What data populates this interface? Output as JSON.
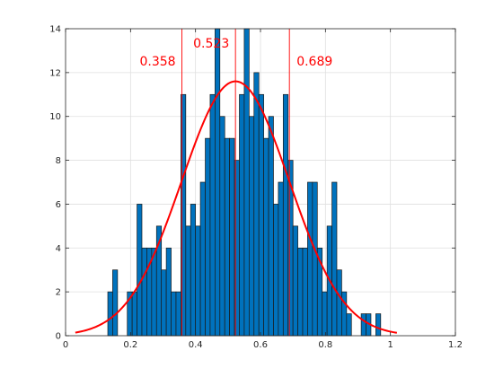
{
  "chart_data": {
    "type": "bar",
    "subtype": "histogram",
    "title": "",
    "xlabel": "",
    "ylabel": "",
    "xlim": [
      0,
      1.2
    ],
    "ylim": [
      0,
      14
    ],
    "grid": true,
    "bin_edges": [
      0.13,
      0.145,
      0.16,
      0.175,
      0.19,
      0.205,
      0.22,
      0.235,
      0.25,
      0.265,
      0.28,
      0.295,
      0.31,
      0.325,
      0.34,
      0.355,
      0.37,
      0.385,
      0.4,
      0.415,
      0.43,
      0.445,
      0.46,
      0.475,
      0.49,
      0.505,
      0.52,
      0.535,
      0.55,
      0.565,
      0.58,
      0.595,
      0.61,
      0.625,
      0.64,
      0.655,
      0.67,
      0.685,
      0.7,
      0.715,
      0.73,
      0.745,
      0.76,
      0.775,
      0.79,
      0.805,
      0.82,
      0.835,
      0.85,
      0.865,
      0.88,
      0.895,
      0.91,
      0.925,
      0.94,
      0.955,
      0.97
    ],
    "counts": [
      2,
      3,
      0,
      0,
      2,
      2,
      6,
      4,
      4,
      4,
      5,
      3,
      4,
      2,
      2,
      11,
      5,
      6,
      5,
      7,
      9,
      11,
      14,
      10,
      9,
      9,
      8,
      11,
      14,
      10,
      12,
      11,
      9,
      10,
      6,
      7,
      11,
      8,
      5,
      4,
      4,
      7,
      7,
      4,
      2,
      5,
      7,
      3,
      2,
      1,
      0,
      0,
      1,
      1,
      0,
      1
    ],
    "bar_color": "#0072BD",
    "curve": {
      "type": "normal_fit",
      "mean": 0.523,
      "sigma": 0.166,
      "peak": 11.6,
      "x_range": [
        0.03,
        1.02
      ],
      "color": "#ff0000"
    },
    "vlines": [
      {
        "x": 0.358,
        "label": "0.358"
      },
      {
        "x": 0.523,
        "label": "0.523"
      },
      {
        "x": 0.689,
        "label": "0.689"
      }
    ],
    "xticks": [
      "0",
      "0.2",
      "0.4",
      "0.6",
      "0.8",
      "1",
      "1.2"
    ],
    "yticks": [
      "0",
      "2",
      "4",
      "6",
      "8",
      "10",
      "12",
      "14"
    ],
    "annotation_color": "#ff0000"
  }
}
